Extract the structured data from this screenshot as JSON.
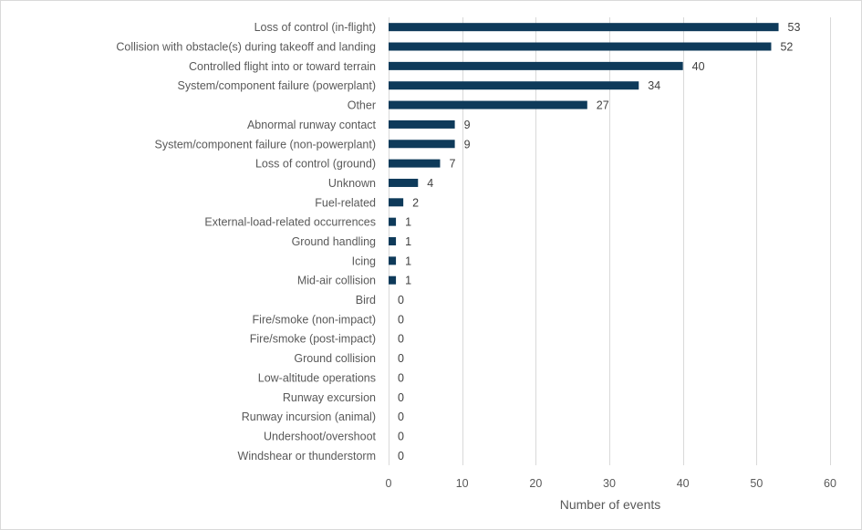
{
  "chart_data": {
    "type": "bar",
    "orientation": "horizontal",
    "title": "",
    "xlabel": "Number of events",
    "ylabel": "",
    "xlim": [
      0,
      60
    ],
    "xticks": [
      0,
      10,
      20,
      30,
      40,
      50,
      60
    ],
    "grid": "vertical",
    "legend": "none",
    "bar_color": "#0e3a5a",
    "categories": [
      "Loss of control (in-flight)",
      "Collision with obstacle(s) during takeoff and landing",
      "Controlled flight into or toward terrain",
      "System/component failure (powerplant)",
      "Other",
      "Abnormal runway contact",
      "System/component failure (non-powerplant)",
      "Loss of control (ground)",
      "Unknown",
      "Fuel-related",
      "External-load-related occurrences",
      "Ground handling",
      "Icing",
      "Mid-air collision",
      "Bird",
      "Fire/smoke (non-impact)",
      "Fire/smoke (post-impact)",
      "Ground collision",
      "Low-altitude operations",
      "Runway excursion",
      "Runway incursion (animal)",
      "Undershoot/overshoot",
      "Windshear or thunderstorm"
    ],
    "values": [
      53,
      52,
      40,
      34,
      27,
      9,
      9,
      7,
      4,
      2,
      1,
      1,
      1,
      1,
      0,
      0,
      0,
      0,
      0,
      0,
      0,
      0,
      0
    ]
  }
}
